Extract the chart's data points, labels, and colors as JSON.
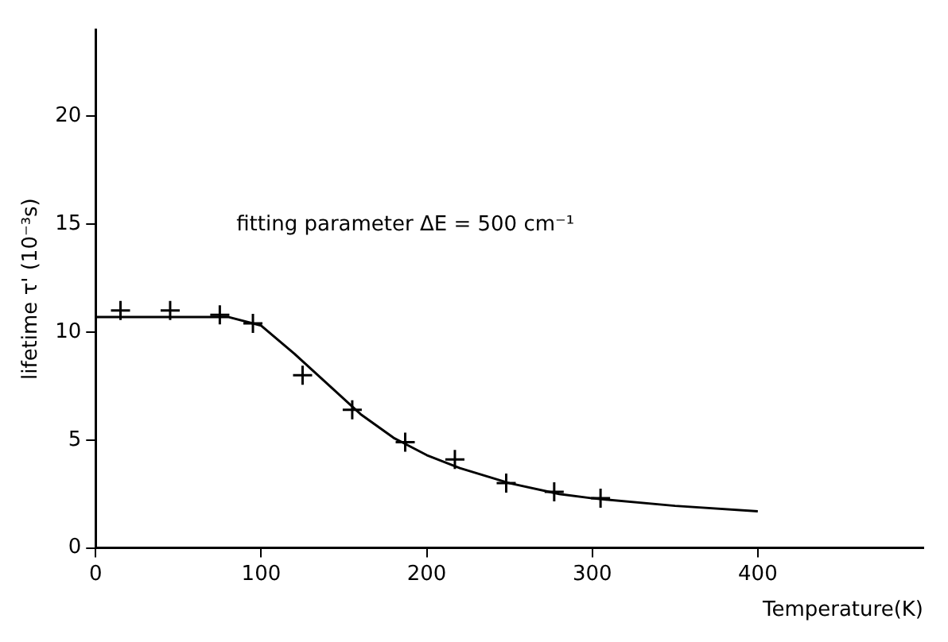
{
  "chart_data": {
    "type": "scatter",
    "xlabel": "Temperature(K)",
    "ylabel": "lifetime τ' (10⁻³s)",
    "annotations": [
      "fitting parameter ΔE = 500 cm⁻¹"
    ],
    "xlim": [
      0,
      500
    ],
    "ylim": [
      0,
      24
    ],
    "xticks": [
      0,
      100,
      200,
      300,
      400
    ],
    "yticks": [
      0,
      5,
      10,
      15,
      20
    ],
    "grid": false,
    "legend": false,
    "series": [
      {
        "type": "scatter",
        "marker": "cross",
        "color": "#000000",
        "x": [
          15,
          45,
          75,
          95,
          125,
          155,
          187,
          217,
          248,
          277,
          305
        ],
        "values": [
          11.0,
          11.0,
          10.8,
          10.4,
          8.0,
          6.4,
          4.9,
          4.1,
          3.0,
          2.6,
          2.3
        ]
      },
      {
        "type": "line",
        "marker": "none",
        "line_style": "solid",
        "color": "#000000",
        "x": [
          0,
          40,
          80,
          100,
          120,
          140,
          160,
          180,
          200,
          220,
          250,
          280,
          300,
          350,
          400
        ],
        "values": [
          10.7,
          10.7,
          10.7,
          10.3,
          9.0,
          7.6,
          6.2,
          5.1,
          4.3,
          3.7,
          3.0,
          2.5,
          2.3,
          1.95,
          1.7
        ]
      }
    ]
  }
}
